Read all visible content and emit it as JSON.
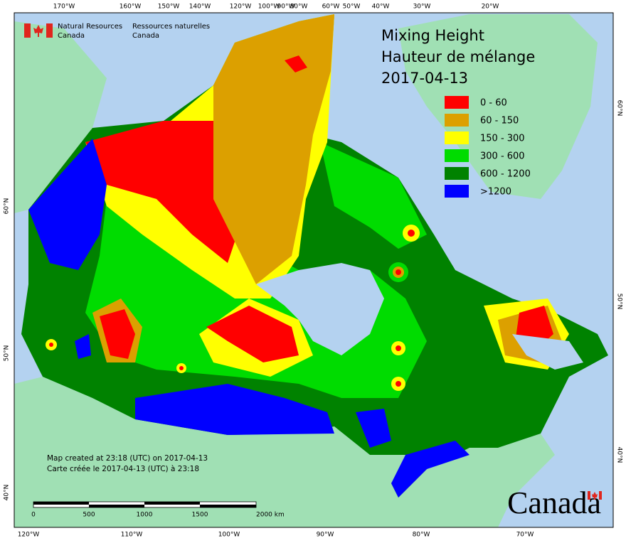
{
  "header": {
    "agency_en": [
      "Natural Resources",
      "Canada"
    ],
    "agency_fr": [
      "Ressources naturelles",
      "Canada"
    ]
  },
  "title": [
    "Mixing Height",
    "Hauteur de mélange",
    "2017-04-13"
  ],
  "legend": [
    {
      "label": "0 - 60",
      "color": "#ff0000"
    },
    {
      "label": "60 - 150",
      "color": "#dca000"
    },
    {
      "label": "150 - 300",
      "color": "#ffff00"
    },
    {
      "label": "300 - 600",
      "color": "#00dc00"
    },
    {
      "label": "600 - 1200",
      "color": "#008200"
    },
    {
      "label": ">1200",
      "color": "#0000ff"
    }
  ],
  "graticule": {
    "top": [
      "170°W",
      "160°W",
      "150°W",
      "140°W",
      "120°W",
      "100°W",
      "90°W",
      "80°W",
      "60°W",
      "50°W",
      "40°W",
      "30°W",
      "20°W"
    ],
    "bottom": [
      "120°W",
      "110°W",
      "100°W",
      "90°W",
      "80°W",
      "70°W"
    ],
    "left": [
      "60°N",
      "50°N",
      "40°N"
    ],
    "right": [
      "60°N",
      "50°N",
      "40°N"
    ]
  },
  "footer": [
    "Map created at 23:18 (UTC) on 2017-04-13",
    "Carte créée le 2017-04-13 (UTC) à 23:18"
  ],
  "scale_bar": [
    "0",
    "500",
    "1000",
    "1500",
    "2000 km"
  ],
  "wordmark": "Canada"
}
